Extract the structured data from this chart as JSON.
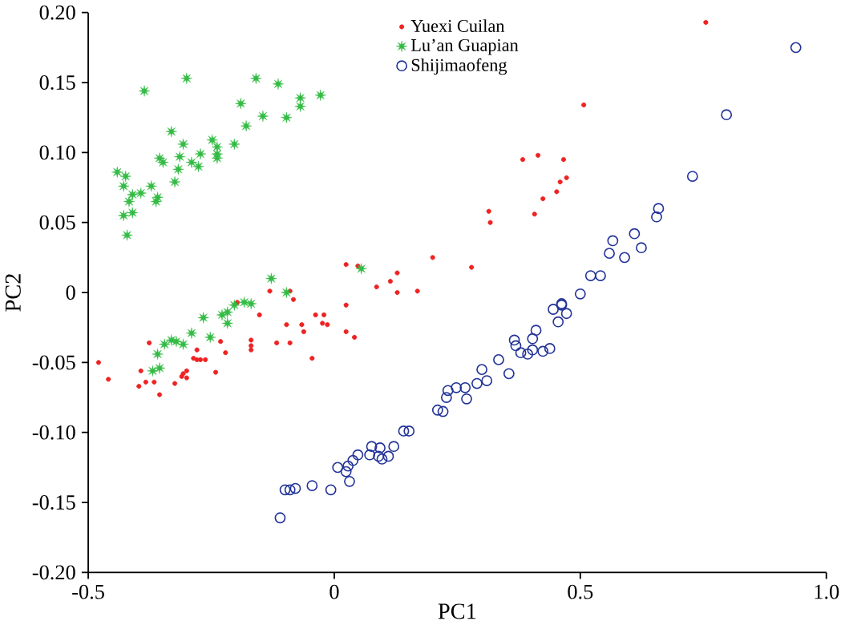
{
  "chart_data": {
    "type": "scatter",
    "xlabel": "PC1",
    "ylabel": "PC2",
    "xlim": [
      -0.5,
      1.0
    ],
    "ylim": [
      -0.2,
      0.2
    ],
    "xticks": [
      -0.5,
      0,
      0.5,
      {
        "value": 1.0,
        "label": "1.0"
      }
    ],
    "yticks": [
      {
        "value": -0.2,
        "label": "-0.20"
      },
      -0.15,
      {
        "value": -0.1,
        "label": "-0.10"
      },
      -0.05,
      0,
      0.05,
      {
        "value": 0.1,
        "label": "0.10"
      },
      0.15,
      {
        "value": 0.2,
        "label": "0.20"
      }
    ],
    "grid": false,
    "legend": "top",
    "series": [
      {
        "name": "Yuexi Cuilan",
        "color": "#ee2222",
        "marker": "circle",
        "x": [
          0.024,
          0.048,
          0.086,
          0.114,
          0.128,
          0.128,
          0.169,
          0.2,
          0.279,
          0.314,
          0.317,
          -0.131,
          -0.09,
          -0.083,
          -0.197,
          -0.152,
          -0.097,
          -0.066,
          -0.038,
          -0.021,
          -0.024,
          -0.014,
          0.024,
          0.024,
          0.041,
          -0.062,
          -0.045,
          -0.09,
          -0.117,
          -0.169,
          -0.169,
          -0.169,
          -0.231,
          -0.221,
          -0.241,
          -0.262,
          -0.272,
          -0.279,
          -0.286,
          -0.279,
          -0.3,
          -0.307,
          -0.3,
          -0.31,
          -0.324,
          -0.376,
          -0.393,
          -0.397,
          -0.383,
          -0.366,
          -0.355,
          -0.459,
          -0.479,
          0.755,
          0.507,
          0.383,
          0.414,
          0.466,
          0.472,
          0.459,
          0.452,
          0.424,
          0.407
        ],
        "values": [
          0.02,
          0.019,
          0.004,
          0.008,
          0.014,
          0.0,
          0.001,
          0.025,
          0.018,
          0.058,
          0.05,
          0.001,
          0.001,
          -0.005,
          -0.007,
          -0.016,
          -0.023,
          -0.023,
          -0.016,
          -0.016,
          -0.022,
          -0.023,
          -0.009,
          -0.028,
          -0.032,
          -0.028,
          -0.047,
          -0.036,
          -0.036,
          -0.034,
          -0.038,
          -0.041,
          -0.035,
          -0.043,
          -0.057,
          -0.048,
          -0.048,
          -0.048,
          -0.047,
          -0.041,
          -0.056,
          -0.058,
          -0.061,
          -0.06,
          -0.065,
          -0.036,
          -0.056,
          -0.067,
          -0.064,
          -0.064,
          -0.073,
          -0.062,
          -0.05,
          0.193,
          0.134,
          0.095,
          0.098,
          0.095,
          0.082,
          0.079,
          0.072,
          0.067,
          0.056
        ]
      },
      {
        "name": "Lu’an Guapian",
        "color": "#33bb44",
        "marker": "star",
        "x": [
          -0.386,
          -0.3,
          -0.159,
          -0.114,
          -0.069,
          -0.028,
          -0.069,
          -0.19,
          -0.145,
          -0.097,
          -0.179,
          -0.331,
          -0.307,
          -0.248,
          -0.238,
          -0.203,
          -0.238,
          -0.272,
          -0.314,
          -0.355,
          -0.348,
          -0.29,
          -0.276,
          -0.238,
          -0.317,
          -0.324,
          -0.441,
          -0.424,
          -0.428,
          -0.372,
          -0.393,
          -0.41,
          -0.417,
          -0.359,
          -0.362,
          -0.41,
          -0.428,
          -0.421,
          -0.128,
          -0.097,
          0.055,
          -0.169,
          -0.183,
          -0.203,
          -0.217,
          -0.228,
          -0.217,
          -0.266,
          -0.252,
          -0.29,
          -0.307,
          -0.331,
          -0.345,
          -0.359,
          -0.355,
          -0.369,
          -0.321
        ],
        "values": [
          0.144,
          0.153,
          0.153,
          0.149,
          0.139,
          0.141,
          0.133,
          0.135,
          0.126,
          0.125,
          0.119,
          0.115,
          0.106,
          0.109,
          0.104,
          0.106,
          0.099,
          0.099,
          0.097,
          0.096,
          0.093,
          0.093,
          0.09,
          0.096,
          0.088,
          0.079,
          0.086,
          0.083,
          0.076,
          0.076,
          0.071,
          0.07,
          0.065,
          0.068,
          0.065,
          0.057,
          0.055,
          0.041,
          0.01,
          0.0,
          0.017,
          -0.008,
          -0.007,
          -0.009,
          -0.014,
          -0.016,
          -0.022,
          -0.018,
          -0.032,
          -0.029,
          -0.037,
          -0.034,
          -0.037,
          -0.044,
          -0.054,
          -0.056,
          -0.035
        ]
      },
      {
        "name": "Shijimaofeng",
        "color": "#223399",
        "marker": "circle_open",
        "x": [
          0.938,
          0.797,
          0.728,
          0.659,
          0.655,
          0.61,
          0.624,
          0.59,
          0.566,
          0.559,
          0.521,
          0.541,
          0.5,
          0.462,
          0.445,
          0.462,
          0.472,
          0.455,
          0.41,
          0.403,
          0.366,
          0.369,
          0.379,
          0.393,
          0.403,
          0.424,
          0.438,
          0.334,
          0.355,
          0.3,
          0.29,
          0.31,
          0.266,
          0.269,
          0.248,
          0.231,
          0.228,
          0.21,
          0.221,
          0.152,
          0.141,
          0.121,
          0.11,
          0.09,
          0.076,
          0.093,
          0.097,
          0.072,
          0.048,
          0.038,
          0.028,
          0.007,
          0.024,
          0.031,
          -0.007,
          -0.045,
          -0.079,
          -0.09,
          -0.1,
          -0.11
        ],
        "values": [
          0.175,
          0.127,
          0.083,
          0.06,
          0.054,
          0.042,
          0.032,
          0.025,
          0.037,
          0.028,
          0.012,
          0.012,
          -0.001,
          -0.008,
          -0.012,
          -0.009,
          -0.015,
          -0.021,
          -0.027,
          -0.033,
          -0.034,
          -0.038,
          -0.043,
          -0.044,
          -0.041,
          -0.042,
          -0.04,
          -0.048,
          -0.058,
          -0.055,
          -0.065,
          -0.063,
          -0.068,
          -0.076,
          -0.068,
          -0.07,
          -0.075,
          -0.084,
          -0.085,
          -0.099,
          -0.099,
          -0.11,
          -0.117,
          -0.117,
          -0.11,
          -0.111,
          -0.119,
          -0.116,
          -0.116,
          -0.12,
          -0.124,
          -0.125,
          -0.128,
          -0.135,
          -0.141,
          -0.138,
          -0.14,
          -0.141,
          -0.141,
          -0.161
        ]
      }
    ]
  }
}
